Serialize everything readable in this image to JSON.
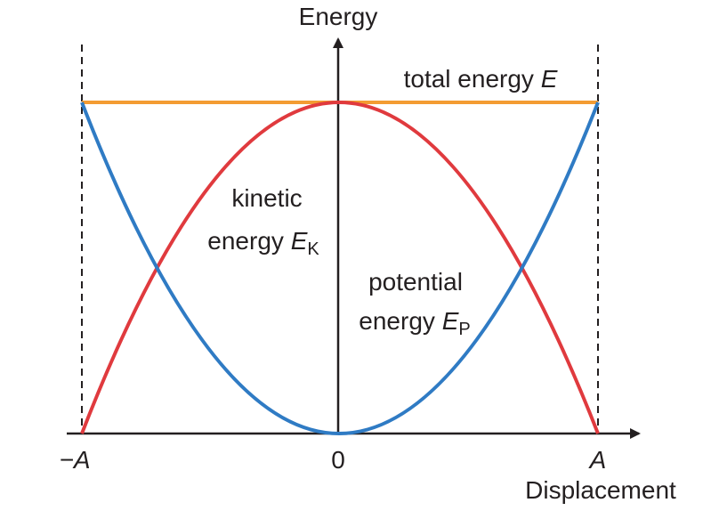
{
  "axes": {
    "y_label": "Energy",
    "x_label": "Displacement",
    "x_ticks": [
      "−A",
      "0",
      "A"
    ]
  },
  "curves": {
    "total": {
      "text": "total energy",
      "symbol": "E"
    },
    "kinetic": {
      "line1": "kinetic",
      "line2": "energy",
      "symbol": "E",
      "subscript": "K"
    },
    "potential": {
      "line1": "potential",
      "line2": "energy",
      "symbol": "E",
      "subscript": "P"
    }
  }
}
